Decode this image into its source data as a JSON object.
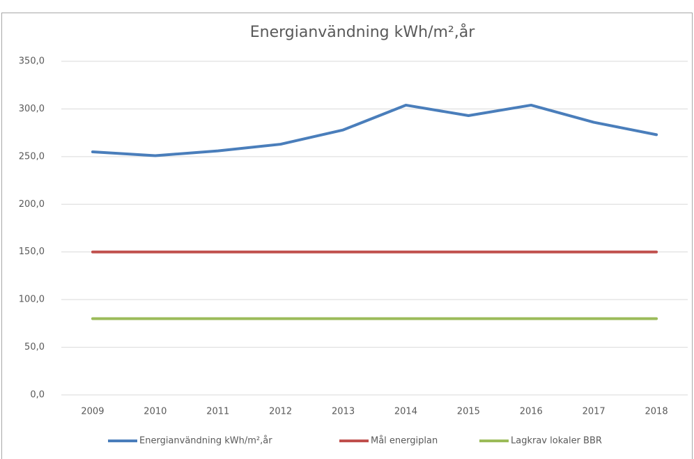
{
  "chart_data": {
    "type": "line",
    "title": "Energianvändning kWh/m²,år",
    "categories": [
      "2009",
      "2010",
      "2011",
      "2012",
      "2013",
      "2014",
      "2015",
      "2016",
      "2017",
      "2018"
    ],
    "series": [
      {
        "name": "Energianvändning kWh/m²,år",
        "color": "#4a7ebb",
        "values": [
          255,
          251,
          256,
          263,
          278,
          304,
          293,
          304,
          286,
          273
        ]
      },
      {
        "name": "Mål energiplan",
        "color": "#c0504d",
        "values": [
          150,
          150,
          150,
          150,
          150,
          150,
          150,
          150,
          150,
          150
        ]
      },
      {
        "name": "Lagkrav lokaler BBR",
        "color": "#9bbb59",
        "values": [
          80,
          80,
          80,
          80,
          80,
          80,
          80,
          80,
          80,
          80
        ]
      }
    ],
    "ylim": [
      0,
      350
    ],
    "yticks": [
      {
        "value": 0,
        "label": "0,0"
      },
      {
        "value": 50,
        "label": "50,0"
      },
      {
        "value": 100,
        "label": "100,0"
      },
      {
        "value": 150,
        "label": "150,0"
      },
      {
        "value": 200,
        "label": "200,0"
      },
      {
        "value": 250,
        "label": "250,0"
      },
      {
        "value": 300,
        "label": "300,0"
      },
      {
        "value": 350,
        "label": "350,0"
      }
    ],
    "grid": true,
    "legend": "bottom"
  }
}
